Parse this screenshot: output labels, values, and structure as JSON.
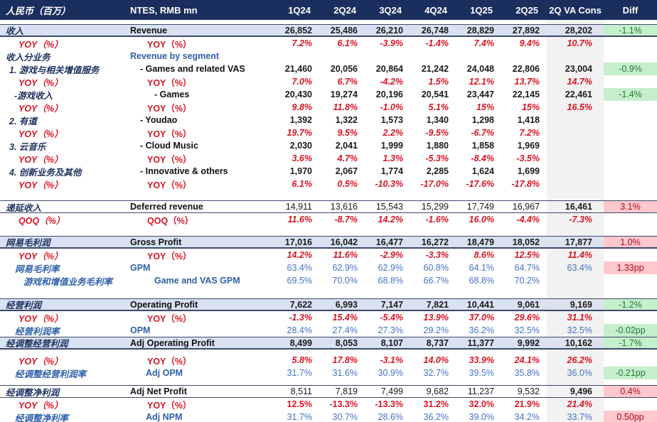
{
  "colors": {
    "header_bg": "#1b2f5e",
    "highlight_row_bg": "#d9e1f2",
    "cons_column_bg": "#f2f2f2",
    "positive_diff_bg": "#c6efce",
    "positive_diff_text": "#1f7a2e",
    "negative_diff_bg": "#ffc7ce",
    "negative_diff_text": "#ae0a1e",
    "yoy_text": "#d91423",
    "rate_text": "#4472c4"
  },
  "header": {
    "col_cn": "人民币（百万）",
    "col_en": "NTES, RMB mn",
    "quarters": [
      "1Q24",
      "2Q24",
      "3Q24",
      "4Q24",
      "1Q25",
      "2Q25"
    ],
    "cons": "2Q VA Cons",
    "diff": "Diff"
  },
  "rows": [
    {
      "style": "spacer",
      "h": 6
    },
    {
      "name": "revenue",
      "style": "highlight",
      "ind": "base",
      "cn": "收入",
      "en": "Revenue",
      "v": [
        "26,852",
        "25,486",
        "26,210",
        "26,748",
        "28,829",
        "27,892"
      ],
      "cons": "28,202",
      "diff": "-1.1%",
      "dtype": "green"
    },
    {
      "name": "revenue-yoy",
      "style": "yoy",
      "ind": "yoy",
      "cn": "YOY（%）",
      "en": "YOY（%）",
      "v": [
        "7.2%",
        "6.1%",
        "-3.9%",
        "-1.4%",
        "7.4%",
        "9.4%"
      ],
      "cons": "10.7%"
    },
    {
      "name": "revenue-by-segment",
      "style": "segment",
      "ind": "base",
      "cn": "收入分业务",
      "en": "Revenue by segment",
      "v": [
        "",
        "",
        "",
        "",
        "",
        ""
      ]
    },
    {
      "name": "games-and-related-vas",
      "style": "item",
      "ind": "i1",
      "cn": "1. 游戏与相关增值服务",
      "en": "- Games and related VAS",
      "v": [
        "21,460",
        "20,056",
        "20,864",
        "21,242",
        "24,048",
        "22,806"
      ],
      "cons": "23,004",
      "diff": "-0.9%",
      "dtype": "green"
    },
    {
      "name": "games-vas-yoy",
      "style": "yoy",
      "ind": "yoy",
      "cn": "YOY（%）",
      "en": "YOY（%）",
      "v": [
        "7.0%",
        "6.7%",
        "-4.2%",
        "1.5%",
        "12.1%",
        "13.7%"
      ],
      "cons": "14.7%"
    },
    {
      "name": "games",
      "style": "item",
      "ind": "i2",
      "cn": "-游戏收入",
      "en": "- Games",
      "v": [
        "20,430",
        "19,274",
        "20,196",
        "20,541",
        "23,447",
        "22,145"
      ],
      "cons": "22,461",
      "diff": "-1.4%",
      "dtype": "green"
    },
    {
      "name": "games-yoy",
      "style": "yoy",
      "ind": "yoy",
      "cn": "YOY（%）",
      "en": "YOY（%）",
      "v": [
        "9.8%",
        "11.8%",
        "-1.0%",
        "5.1%",
        "15%",
        "15%"
      ],
      "cons": "16.5%"
    },
    {
      "name": "youdao",
      "style": "item",
      "ind": "i1",
      "cn": "2. 有道",
      "en": "- Youdao",
      "v": [
        "1,392",
        "1,322",
        "1,573",
        "1,340",
        "1,298",
        "1,418"
      ]
    },
    {
      "name": "youdao-yoy",
      "style": "yoy",
      "ind": "yoy",
      "cn": "YOY（%）",
      "en": "YOY（%）",
      "v": [
        "19.7%",
        "9.5%",
        "2.2%",
        "-9.5%",
        "-6.7%",
        "7.2%"
      ]
    },
    {
      "name": "cloud-music",
      "style": "item",
      "ind": "i1",
      "cn": "3. 云音乐",
      "en": "- Cloud Music",
      "v": [
        "2,030",
        "2,041",
        "1,999",
        "1,880",
        "1,858",
        "1,969"
      ]
    },
    {
      "name": "cloud-music-yoy",
      "style": "yoy",
      "ind": "yoy",
      "cn": "YOY（%）",
      "en": "YOY（%）",
      "v": [
        "3.6%",
        "4.7%",
        "1.3%",
        "-5.3%",
        "-8.4%",
        "-3.5%"
      ]
    },
    {
      "name": "innovative-and-others",
      "style": "item",
      "ind": "i1",
      "cn": "4. 创新业务及其他",
      "en": "- Innovative & others",
      "v": [
        "1,970",
        "2,067",
        "1,774",
        "2,285",
        "1,624",
        "1,699"
      ]
    },
    {
      "name": "innovative-yoy",
      "style": "yoy",
      "ind": "yoy",
      "cn": "YOY（%）",
      "en": "YOY（%）",
      "v": [
        "6.1%",
        "0.5%",
        "-10.3%",
        "-17.0%",
        "-17.6%",
        "-17.8%"
      ]
    },
    {
      "style": "spacer",
      "h": 14
    },
    {
      "name": "deferred-revenue",
      "style": "bordered",
      "ind": "base",
      "cn": "递延收入",
      "en": "Deferred revenue",
      "v": [
        "14,911",
        "13,616",
        "15,543",
        "15,299",
        "17,749",
        "16,967"
      ],
      "cons": "16,461",
      "diff": "3.1%",
      "dtype": "pink"
    },
    {
      "name": "deferred-revenue-qoq",
      "style": "yoy",
      "ind": "yoy",
      "cn": "QOQ（%）",
      "en": "QOQ（%）",
      "v": [
        "11.6%",
        "-8.7%",
        "14.2%",
        "-1.6%",
        "16.0%",
        "-4.4%"
      ],
      "cons": "-7.3%"
    },
    {
      "style": "spacer",
      "h": 14
    },
    {
      "name": "gross-profit",
      "style": "highlight",
      "ind": "base",
      "cn": "网易毛利润",
      "en": "Gross Profit",
      "v": [
        "17,016",
        "16,042",
        "16,477",
        "16,272",
        "18,479",
        "18,052"
      ],
      "cons": "17,877",
      "diff": "1.0%",
      "dtype": "pink"
    },
    {
      "name": "gross-profit-yoy",
      "style": "yoy",
      "ind": "yoy",
      "cn": "YOY（%）",
      "en": "YOY（%）",
      "v": [
        "14.2%",
        "11.6%",
        "-2.9%",
        "-3.3%",
        "8.6%",
        "12.5%"
      ],
      "cons": "11.4%"
    },
    {
      "name": "gpm",
      "style": "rate",
      "ind": "rate",
      "cn": "网易毛利率",
      "en": "GPM",
      "v": [
        "63.4%",
        "62.9%",
        "62.9%",
        "60.8%",
        "64.1%",
        "64.7%"
      ],
      "cons": "63.4%",
      "diff": "1.33pp",
      "dtype": "pink"
    },
    {
      "name": "game-and-vas-gpm",
      "style": "rate",
      "ind": "rate2",
      "cn": "游戏和增值业务毛利率",
      "en": "Game and VAS GPM",
      "v": [
        "69.5%",
        "70.0%",
        "68.8%",
        "66.7%",
        "68.8%",
        "70.2%"
      ]
    },
    {
      "style": "spacer",
      "h": 16
    },
    {
      "name": "operating-profit",
      "style": "highlight",
      "ind": "base",
      "cn": "经营利润",
      "en": "Operating Profit",
      "v": [
        "7,622",
        "6,993",
        "7,147",
        "7,821",
        "10,441",
        "9,061"
      ],
      "cons": "9,169",
      "diff": "-1.2%",
      "dtype": "green"
    },
    {
      "name": "operating-profit-yoy",
      "style": "yoy",
      "ind": "yoy",
      "cn": "YOY（%）",
      "en": "YOY（%）",
      "v": [
        "-1.3%",
        "15.4%",
        "-5.4%",
        "13.9%",
        "37.0%",
        "29.6%"
      ],
      "cons": "31.1%"
    },
    {
      "name": "opm",
      "style": "rate",
      "ind": "rate",
      "cn": "经营利润率",
      "en": "OPM",
      "v": [
        "28.4%",
        "27.4%",
        "27.3%",
        "29.2%",
        "36.2%",
        "32.5%"
      ],
      "cons": "32.5%",
      "diff": "-0.02pp",
      "dtype": "green"
    },
    {
      "name": "adj-operating-profit",
      "style": "highlight",
      "ind": "base",
      "cn": "经调整经营利润",
      "en": "Adj Operating Profit",
      "v": [
        "8,499",
        "8,053",
        "8,107",
        "8,737",
        "11,377",
        "9,992"
      ],
      "cons": "10,162",
      "diff": "-1.7%",
      "dtype": "green"
    },
    {
      "style": "spacer",
      "h": 6
    },
    {
      "name": "adj-operating-profit-yoy",
      "style": "yoy",
      "ind": "yoy",
      "cn": "YOY（%）",
      "en": "YOY（%）",
      "v": [
        "5.8%",
        "17.8%",
        "-3.1%",
        "14.0%",
        "33.9%",
        "24.1%"
      ],
      "cons": "26.2%"
    },
    {
      "name": "adj-opm",
      "style": "rate",
      "ind": "rateA",
      "cn": "经调整经营利润率",
      "en": "Adj OPM",
      "v": [
        "31.7%",
        "31.6%",
        "30.9%",
        "32.7%",
        "39.5%",
        "35.8%"
      ],
      "cons": "36.0%",
      "diff": "-0.21pp",
      "dtype": "green"
    },
    {
      "style": "spacer",
      "h": 8
    },
    {
      "name": "adj-net-profit",
      "style": "bordered",
      "ind": "base",
      "cn": "经调整净利润",
      "en": "Adj Net Profit",
      "v": [
        "8,511",
        "7,819",
        "7,499",
        "9,682",
        "11,237",
        "9,532"
      ],
      "cons": "9,496",
      "diff": "0.4%",
      "dtype": "pink"
    },
    {
      "name": "adj-net-profit-yoy",
      "style": "yoy",
      "ind": "yoy",
      "upright": true,
      "cn": "YOY（%）",
      "en": "YOY（%）",
      "v": [
        "12.5%",
        "-13.3%",
        "-13.3%",
        "31.2%",
        "32.0%",
        "21.9%"
      ],
      "cons": "21.4%"
    },
    {
      "name": "adj-npm",
      "style": "rate",
      "ind": "rateA",
      "cn": "经调整净利率",
      "en": "Adj NPM",
      "v": [
        "31.7%",
        "30.7%",
        "28.6%",
        "36.2%",
        "39.0%",
        "34.2%"
      ],
      "cons": "33.7%",
      "diff": "0.50pp",
      "dtype": "pink"
    }
  ]
}
